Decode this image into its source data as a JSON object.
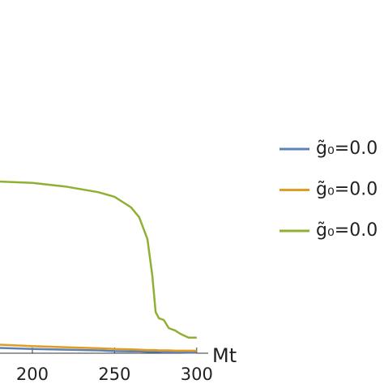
{
  "chart_data": {
    "type": "line",
    "x_label": "Mt",
    "x": [
      180,
      200,
      220,
      240,
      250,
      260,
      265,
      270,
      273,
      275,
      277,
      280,
      283,
      287,
      290,
      295,
      300
    ],
    "series": [
      {
        "name": "g̃₀=0.0",
        "color": "#5e81b5",
        "values": [
          0.015,
          0.012,
          0.01,
          0.008,
          0.006,
          0.005,
          0.005,
          0.004,
          0.004,
          0.004,
          0.004,
          0.003,
          0.003,
          0.003,
          0.003,
          0.002,
          0.002
        ]
      },
      {
        "name": "g̃₀=0.0",
        "color": "#e19c24",
        "values": [
          0.024,
          0.02,
          0.017,
          0.014,
          0.012,
          0.011,
          0.01,
          0.009,
          0.009,
          0.009,
          0.008,
          0.008,
          0.008,
          0.007,
          0.007,
          0.007,
          0.007
        ]
      },
      {
        "name": "g̃₀=0.0",
        "color": "#8fb032",
        "values": [
          0.486,
          0.482,
          0.472,
          0.456,
          0.443,
          0.413,
          0.385,
          0.323,
          0.22,
          0.117,
          0.099,
          0.094,
          0.071,
          0.064,
          0.055,
          0.044,
          0.044
        ]
      }
    ],
    "xlim": [
      180,
      307
    ],
    "ylim": [
      0,
      1
    ],
    "xticks": [
      200,
      250,
      300
    ]
  }
}
